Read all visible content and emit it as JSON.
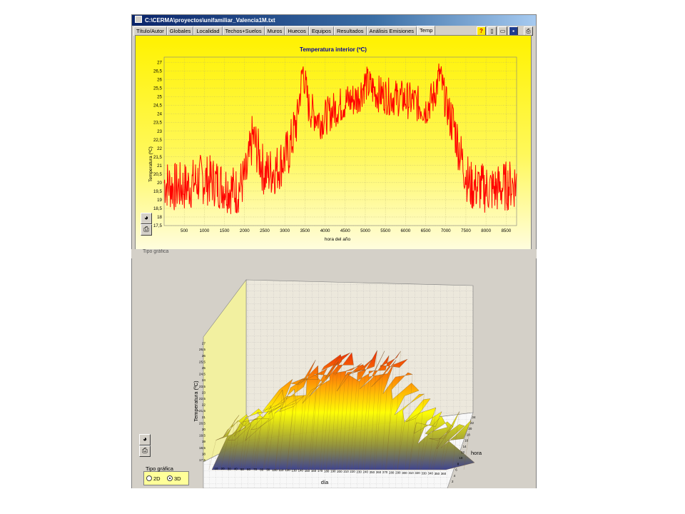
{
  "window": {
    "title": "C:\\CERMA\\proyectos\\unifamiliar_Valencia1M.txt"
  },
  "tabs": [
    "Título/Autor",
    "Globales",
    "Localidad",
    "Techos+Suelos",
    "Muros",
    "Huecos",
    "Equipos",
    "Resultados",
    "Análisis Emisiones",
    "Temp"
  ],
  "active_tab": "Temp",
  "toolbar": {
    "icons": [
      "help-icon",
      "new-file-icon",
      "open-folder-icon",
      "save-icon",
      "print-icon"
    ]
  },
  "bottom_strip_ghost": "Tipo gráfica",
  "side_icons": [
    "chart-color-icon",
    "printer-icon"
  ],
  "chart_data": [
    {
      "type": "line",
      "title": "Temperatura interior (ºC)",
      "xlabel": "hora del año",
      "ylabel": "Temperatura (ºC)",
      "xlim": [
        0,
        8760
      ],
      "ylim": [
        17.5,
        27.3
      ],
      "x_ticks": [
        "500",
        "1000",
        "1500",
        "2000",
        "2500",
        "3000",
        "3500",
        "4000",
        "4500",
        "5000",
        "5500",
        "6000",
        "6500",
        "7000",
        "7500",
        "8000",
        "8500"
      ],
      "y_ticks": [
        "17,5",
        "18",
        "18,5",
        "19",
        "19,5",
        "20",
        "20,5",
        "21",
        "21,5",
        "22",
        "22,5",
        "23",
        "23,5",
        "24",
        "24,5",
        "25",
        "25,5",
        "26",
        "26,5",
        "27"
      ],
      "grid": true,
      "line_color": "#ff0000",
      "series": [
        {
          "x": [
            0,
            300,
            600,
            900,
            1200,
            1500,
            1800,
            2050,
            2200,
            2500,
            2800,
            3100,
            3300,
            3450,
            3600,
            3900,
            4200,
            4500,
            4800,
            5000,
            5300,
            5600,
            5900,
            6200,
            6500,
            6700,
            6850,
            7000,
            7200,
            7400,
            7600,
            7900,
            8200,
            8500,
            8760
          ],
          "values": [
            20.0,
            19.7,
            19.8,
            20.2,
            20.1,
            19.8,
            19.5,
            20.4,
            22.7,
            20.5,
            20.8,
            21.8,
            23.6,
            26.6,
            24.3,
            23.6,
            24.2,
            24.7,
            24.9,
            25.8,
            25.2,
            25.0,
            24.9,
            24.7,
            24.3,
            25.0,
            26.3,
            24.6,
            23.3,
            21.3,
            19.8,
            19.7,
            19.6,
            19.8,
            20.0
          ]
        }
      ]
    },
    {
      "type": "area",
      "xlabel": "día",
      "ylabel": "hora",
      "zlabel": "Temperatura (ºC)",
      "x_ticks": [
        "10",
        "20",
        "30",
        "40",
        "50",
        "60",
        "70",
        "80",
        "90",
        "100",
        "110",
        "120",
        "130",
        "140",
        "150",
        "160",
        "170",
        "180",
        "190",
        "200",
        "210",
        "220",
        "230",
        "240",
        "250",
        "260",
        "270",
        "280",
        "290",
        "300",
        "310",
        "320",
        "330",
        "340",
        "350",
        "360"
      ],
      "y_ticks": [
        "2",
        "4",
        "6",
        "8",
        "10",
        "12",
        "14",
        "16",
        "18",
        "20",
        "22",
        "24"
      ],
      "z_ticks": [
        "17,5",
        "18",
        "18,5",
        "19",
        "19,5",
        "20",
        "20,5",
        "21",
        "21,5",
        "22",
        "22,5",
        "23",
        "23,5",
        "24",
        "24,5",
        "25",
        "25,5",
        "26",
        "26,5",
        "27"
      ],
      "colors": [
        "#3a3f8c",
        "#8e8e3a",
        "#ffff00",
        "#ff9900",
        "#ee2200"
      ],
      "series": [
        {
          "x": [
            1,
            20,
            40,
            60,
            80,
            100,
            120,
            140,
            160,
            180,
            200,
            220,
            240,
            260,
            280,
            300,
            320,
            340,
            365
          ],
          "values": [
            20.2,
            19.8,
            20.8,
            20.4,
            22.6,
            21.4,
            24.4,
            23.6,
            24.8,
            25.2,
            24.6,
            25.0,
            24.8,
            25.4,
            23.0,
            21.0,
            20.0,
            19.8,
            19.6
          ]
        }
      ]
    }
  ],
  "chart_type_selector": {
    "legend": "Tipo gráfica",
    "options": [
      "2D",
      "3D"
    ],
    "selected": "3D"
  }
}
